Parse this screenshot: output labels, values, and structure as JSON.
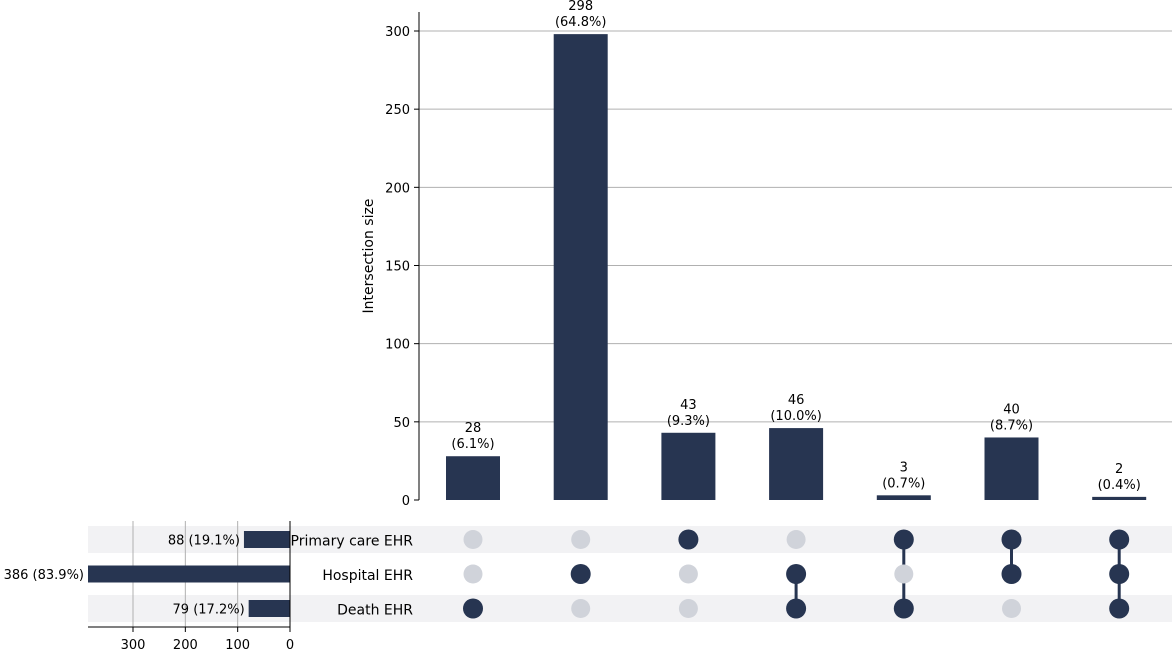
{
  "chart_data": {
    "type": "upset",
    "colors": {
      "bar": "#273551",
      "dot_inactive": "#d0d3da",
      "band": "#f2f2f4",
      "grid": "#b0b0b0"
    },
    "intersections": {
      "ylabel": "Intersection size",
      "yticks": [
        0,
        50,
        100,
        150,
        200,
        250,
        300
      ],
      "ylim": [
        0,
        313
      ],
      "grid": true,
      "values": [
        28,
        298,
        43,
        46,
        3,
        40,
        2
      ],
      "labels": [
        [
          "28",
          "(6.1%)"
        ],
        [
          "298",
          "(64.8%)"
        ],
        [
          "43",
          "(9.3%)"
        ],
        [
          "46",
          "(10.0%)"
        ],
        [
          "3",
          "(0.7%)"
        ],
        [
          "40",
          "(8.7%)"
        ],
        [
          "2",
          "(0.4%)"
        ]
      ],
      "membership": [
        [
          "Death EHR"
        ],
        [
          "Hospital EHR"
        ],
        [
          "Primary care EHR"
        ],
        [
          "Hospital EHR",
          "Death EHR"
        ],
        [
          "Primary care EHR",
          "Death EHR"
        ],
        [
          "Primary care EHR",
          "Hospital EHR"
        ],
        [
          "Primary care EHR",
          "Hospital EHR",
          "Death EHR"
        ]
      ]
    },
    "sets": {
      "names": [
        "Primary care EHR",
        "Hospital EHR",
        "Death EHR"
      ],
      "values": [
        88,
        386,
        79
      ],
      "labels": [
        "88 (19.1%)",
        "386 (83.9%)",
        "79 (17.2%)"
      ],
      "xticks": [
        300,
        200,
        100,
        0
      ],
      "xlim": [
        386,
        0
      ],
      "grid": true
    }
  }
}
